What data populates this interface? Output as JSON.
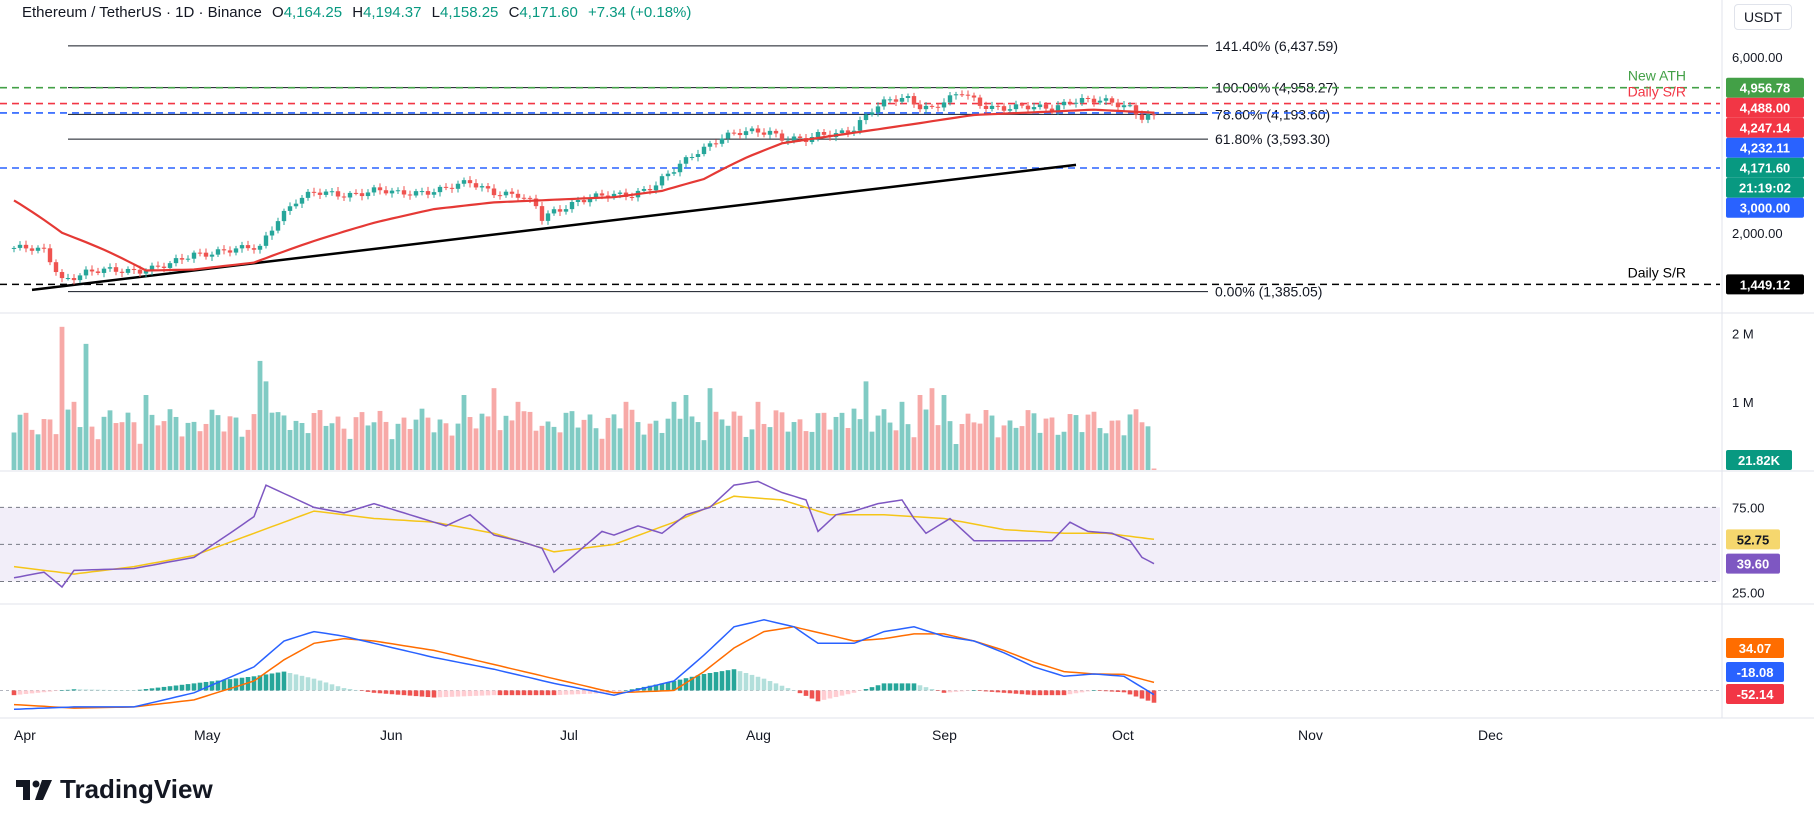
{
  "header": {
    "symbol": "Ethereum / TetherUS · 1D · Binance",
    "open_label": "O",
    "open": "4,164.25",
    "high_label": "H",
    "high": "4,194.37",
    "low_label": "L",
    "low": "4,158.25",
    "close_label": "C",
    "close": "4,171.60",
    "change": "+7.34 (+0.18%)"
  },
  "currency": "USDT",
  "brand": "TradingView",
  "colors": {
    "up": "#26a69a",
    "down": "#ef5350",
    "ma": "#e53935",
    "rsi": "#7e57c2",
    "rsi_ma": "#f5c518",
    "macd": "#2962ff",
    "signal": "#ff6d00"
  },
  "chart_data": {
    "type": "candlestick",
    "timeframe": "1D",
    "x_month_labels": [
      "Apr",
      "May",
      "Jun",
      "Jul",
      "Aug",
      "Sep",
      "Oct",
      "Nov",
      "Dec"
    ],
    "price_axis_ticks": [
      "6,000.00",
      "2,000.00"
    ],
    "price_badges": [
      {
        "label": "4,956.78",
        "color": "#43a047"
      },
      {
        "label": "4,488.00",
        "color": "#f23645"
      },
      {
        "label": "4,247.14",
        "color": "#f23645"
      },
      {
        "label": "4,232.11",
        "color": "#2962ff"
      },
      {
        "label": "4,171.60",
        "color": "#089981"
      },
      {
        "label": "21:19:02",
        "color": "#089981"
      },
      {
        "label": "3,000.00",
        "color": "#2962ff"
      },
      {
        "label": "1,449.12",
        "color": "#000000"
      }
    ],
    "fib_levels": [
      {
        "label": "141.40% (6,437.59)",
        "value": 6437.59
      },
      {
        "label": "100.00% (4,958.27)",
        "value": 4958.27
      },
      {
        "label": "78.60% (4,193.60)",
        "value": 4193.6
      },
      {
        "label": "61.80% (3,593.30)",
        "value": 3593.3
      },
      {
        "label": "0.00% (1,385.05)",
        "value": 1385.05
      }
    ],
    "horizontal_lines": [
      {
        "label": "New ATH",
        "value": 4956.78,
        "color": "#43a047",
        "style": "dashed"
      },
      {
        "label": "Daily S/R",
        "value": 4488.0,
        "color": "#f23645",
        "style": "dashed"
      },
      {
        "label": "",
        "value": 4232.11,
        "color": "#2962ff",
        "style": "dashed"
      },
      {
        "label": "",
        "value": 3000.0,
        "color": "#2962ff",
        "style": "dashed"
      },
      {
        "label": "Daily S/R",
        "value": 1449.12,
        "color": "#000000",
        "style": "dashed"
      }
    ],
    "trendline": {
      "from": {
        "day": 3,
        "price": 1400
      },
      "to": {
        "day": 177,
        "price": 3060
      }
    },
    "close_keypoints": [
      [
        0,
        1820
      ],
      [
        5,
        1780
      ],
      [
        8,
        1500
      ],
      [
        12,
        1560
      ],
      [
        18,
        1580
      ],
      [
        22,
        1600
      ],
      [
        26,
        1630
      ],
      [
        30,
        1750
      ],
      [
        34,
        1790
      ],
      [
        38,
        1800
      ],
      [
        41,
        1820
      ],
      [
        44,
        2200
      ],
      [
        47,
        2450
      ],
      [
        50,
        2550
      ],
      [
        55,
        2550
      ],
      [
        60,
        2600
      ],
      [
        64,
        2550
      ],
      [
        68,
        2600
      ],
      [
        72,
        2630
      ],
      [
        76,
        2730
      ],
      [
        80,
        2600
      ],
      [
        84,
        2520
      ],
      [
        87,
        2350
      ],
      [
        88,
        2180
      ],
      [
        90,
        2300
      ],
      [
        94,
        2450
      ],
      [
        98,
        2500
      ],
      [
        103,
        2560
      ],
      [
        107,
        2700
      ],
      [
        110,
        2940
      ],
      [
        114,
        3350
      ],
      [
        118,
        3650
      ],
      [
        122,
        3730
      ],
      [
        126,
        3780
      ],
      [
        128,
        3650
      ],
      [
        132,
        3560
      ],
      [
        134,
        3650
      ],
      [
        137,
        3720
      ],
      [
        140,
        3880
      ],
      [
        143,
        4300
      ],
      [
        146,
        4560
      ],
      [
        149,
        4650
      ],
      [
        151,
        4450
      ],
      [
        153,
        4380
      ],
      [
        156,
        4600
      ],
      [
        158,
        4780
      ],
      [
        161,
        4480
      ],
      [
        165,
        4380
      ],
      [
        170,
        4350
      ],
      [
        173,
        4380
      ],
      [
        176,
        4600
      ],
      [
        179,
        4560
      ],
      [
        183,
        4500
      ],
      [
        186,
        4420
      ],
      [
        188,
        4150
      ],
      [
        190,
        4171.6
      ]
    ],
    "ma": {
      "color": "#e53935",
      "keypoints": [
        [
          0,
          2450
        ],
        [
          8,
          2000
        ],
        [
          15,
          1800
        ],
        [
          22,
          1580
        ],
        [
          30,
          1590
        ],
        [
          40,
          1660
        ],
        [
          50,
          1900
        ],
        [
          60,
          2130
        ],
        [
          70,
          2320
        ],
        [
          80,
          2420
        ],
        [
          90,
          2460
        ],
        [
          100,
          2500
        ],
        [
          108,
          2600
        ],
        [
          115,
          2800
        ],
        [
          122,
          3200
        ],
        [
          128,
          3500
        ],
        [
          135,
          3640
        ],
        [
          142,
          3780
        ],
        [
          150,
          3950
        ],
        [
          160,
          4180
        ],
        [
          170,
          4250
        ],
        [
          180,
          4320
        ],
        [
          190,
          4240
        ]
      ]
    },
    "volume": {
      "ticks": [
        "2 M",
        "1 M"
      ],
      "last_label": "21.82K",
      "max": 2200000,
      "highlights": [
        [
          8,
          2100000
        ],
        [
          10,
          1000000
        ],
        [
          12,
          1850000
        ],
        [
          22,
          1100000
        ],
        [
          41,
          1600000
        ],
        [
          42,
          1300000
        ],
        [
          45,
          800000
        ],
        [
          60,
          700000
        ],
        [
          75,
          1100000
        ],
        [
          80,
          1200000
        ],
        [
          84,
          1000000
        ],
        [
          102,
          1000000
        ],
        [
          110,
          1000000
        ],
        [
          112,
          1100000
        ],
        [
          116,
          1200000
        ],
        [
          124,
          1000000
        ],
        [
          140,
          900000
        ],
        [
          142,
          1300000
        ],
        [
          148,
          1000000
        ],
        [
          151,
          1100000
        ],
        [
          153,
          1200000
        ],
        [
          155,
          1100000
        ],
        [
          188,
          700000
        ]
      ]
    },
    "rsi": {
      "ticks": [
        "75.00",
        "25.00"
      ],
      "upper": 70,
      "mid": 50,
      "lower": 30,
      "value": 39.6,
      "ma_value": 52.75,
      "ymin": 20,
      "ymax": 88,
      "keypoints": [
        [
          0,
          32
        ],
        [
          5,
          35
        ],
        [
          8,
          27
        ],
        [
          10,
          36
        ],
        [
          20,
          37
        ],
        [
          30,
          43
        ],
        [
          36,
          56
        ],
        [
          40,
          65
        ],
        [
          42,
          82
        ],
        [
          46,
          76
        ],
        [
          50,
          70
        ],
        [
          55,
          67
        ],
        [
          60,
          72
        ],
        [
          66,
          66
        ],
        [
          72,
          60
        ],
        [
          76,
          66
        ],
        [
          80,
          55
        ],
        [
          84,
          52
        ],
        [
          88,
          48
        ],
        [
          90,
          35
        ],
        [
          94,
          46
        ],
        [
          98,
          57
        ],
        [
          100,
          55
        ],
        [
          104,
          60
        ],
        [
          108,
          56
        ],
        [
          112,
          66
        ],
        [
          116,
          70
        ],
        [
          120,
          82
        ],
        [
          124,
          84
        ],
        [
          128,
          78
        ],
        [
          132,
          74
        ],
        [
          134,
          57
        ],
        [
          137,
          66
        ],
        [
          140,
          68
        ],
        [
          144,
          72
        ],
        [
          148,
          74
        ],
        [
          150,
          64
        ],
        [
          152,
          56
        ],
        [
          156,
          64
        ],
        [
          160,
          52
        ],
        [
          164,
          52
        ],
        [
          168,
          52
        ],
        [
          170,
          52
        ],
        [
          173,
          52
        ],
        [
          176,
          62
        ],
        [
          179,
          57
        ],
        [
          183,
          56
        ],
        [
          186,
          52
        ],
        [
          188,
          43
        ],
        [
          190,
          39.6
        ]
      ],
      "ma_keypoints": [
        [
          0,
          38
        ],
        [
          10,
          34
        ],
        [
          20,
          38
        ],
        [
          30,
          44
        ],
        [
          40,
          56
        ],
        [
          50,
          68
        ],
        [
          60,
          64
        ],
        [
          70,
          62
        ],
        [
          80,
          56
        ],
        [
          90,
          46
        ],
        [
          100,
          50
        ],
        [
          110,
          62
        ],
        [
          120,
          76
        ],
        [
          128,
          74
        ],
        [
          136,
          66
        ],
        [
          145,
          66
        ],
        [
          155,
          64
        ],
        [
          165,
          58
        ],
        [
          175,
          56
        ],
        [
          182,
          56
        ],
        [
          190,
          52.75
        ]
      ]
    },
    "macd": {
      "labels": [
        "34.07",
        "-18.08",
        "-52.14"
      ],
      "ymin": -100,
      "ymax": 350,
      "macd_keypoints": [
        [
          0,
          -80
        ],
        [
          10,
          -70
        ],
        [
          20,
          -70
        ],
        [
          30,
          -10
        ],
        [
          40,
          100
        ],
        [
          45,
          210
        ],
        [
          50,
          250
        ],
        [
          55,
          230
        ],
        [
          60,
          200
        ],
        [
          70,
          140
        ],
        [
          80,
          90
        ],
        [
          90,
          30
        ],
        [
          100,
          -20
        ],
        [
          110,
          40
        ],
        [
          115,
          150
        ],
        [
          120,
          270
        ],
        [
          125,
          300
        ],
        [
          130,
          270
        ],
        [
          134,
          200
        ],
        [
          140,
          200
        ],
        [
          145,
          250
        ],
        [
          150,
          270
        ],
        [
          155,
          230
        ],
        [
          160,
          210
        ],
        [
          165,
          160
        ],
        [
          170,
          100
        ],
        [
          175,
          60
        ],
        [
          180,
          70
        ],
        [
          185,
          60
        ],
        [
          190,
          -18.08
        ]
      ],
      "signal_keypoints": [
        [
          0,
          -60
        ],
        [
          10,
          -75
        ],
        [
          20,
          -70
        ],
        [
          30,
          -40
        ],
        [
          40,
          40
        ],
        [
          45,
          130
        ],
        [
          50,
          200
        ],
        [
          55,
          220
        ],
        [
          60,
          210
        ],
        [
          70,
          170
        ],
        [
          80,
          110
        ],
        [
          90,
          50
        ],
        [
          100,
          -10
        ],
        [
          110,
          0
        ],
        [
          115,
          80
        ],
        [
          120,
          180
        ],
        [
          125,
          250
        ],
        [
          130,
          270
        ],
        [
          135,
          240
        ],
        [
          140,
          210
        ],
        [
          145,
          220
        ],
        [
          150,
          240
        ],
        [
          155,
          240
        ],
        [
          160,
          210
        ],
        [
          165,
          170
        ],
        [
          170,
          120
        ],
        [
          175,
          80
        ],
        [
          180,
          70
        ],
        [
          185,
          68
        ],
        [
          190,
          34.07
        ]
      ]
    }
  }
}
